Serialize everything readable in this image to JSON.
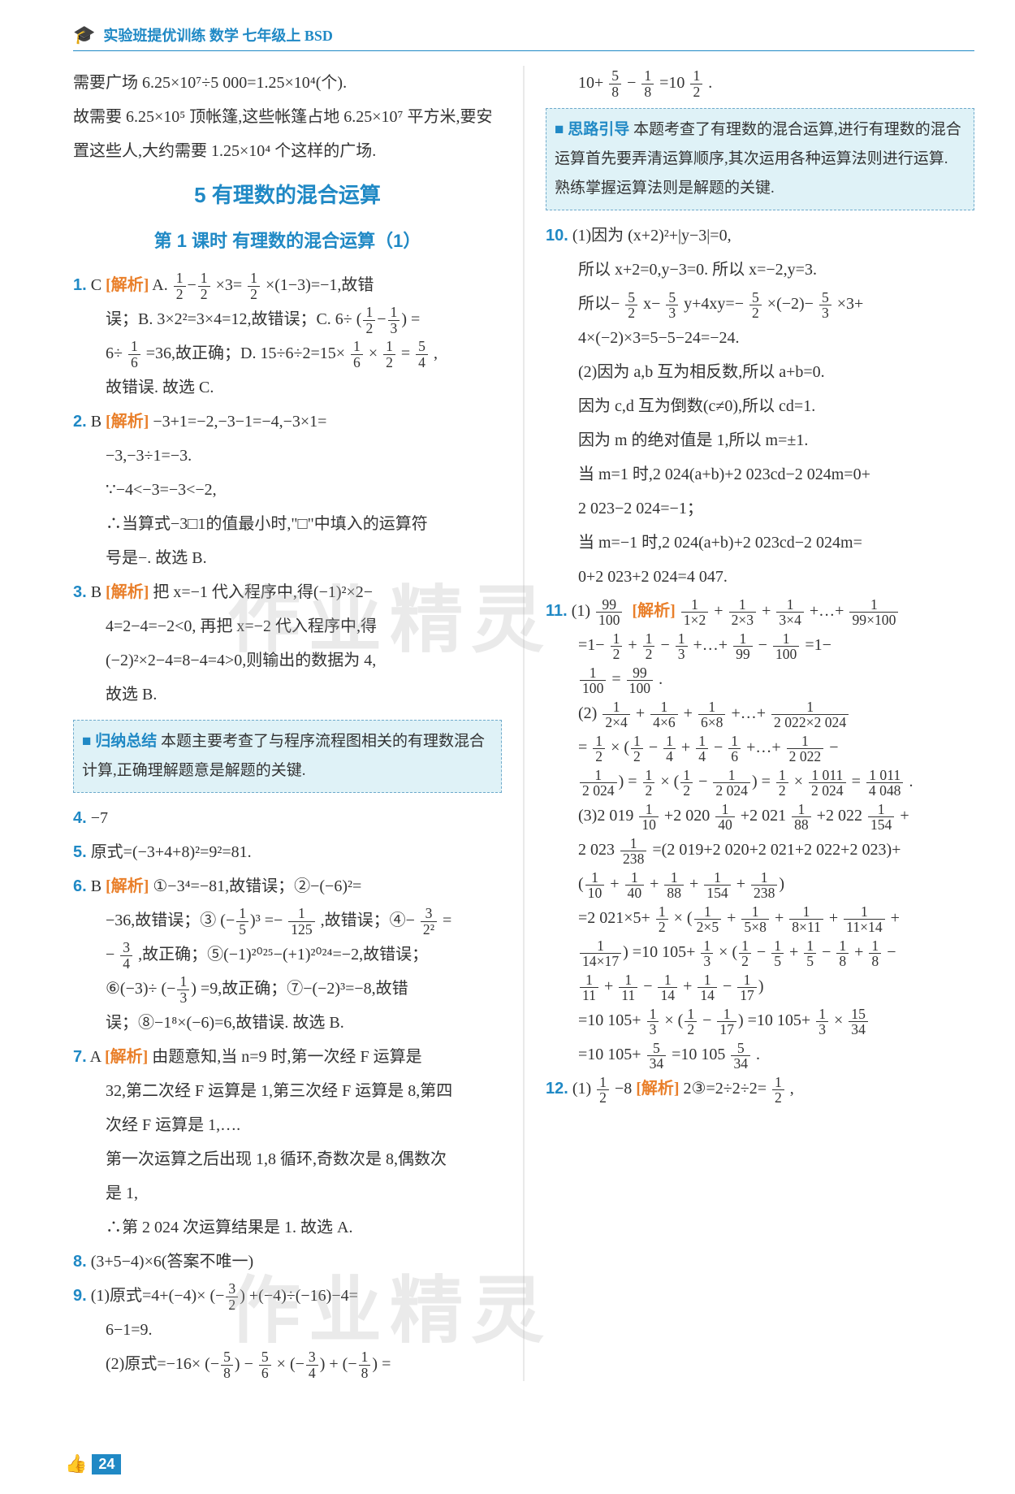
{
  "header": {
    "title": "实验班提优训练 数学 七年级上 BSD"
  },
  "page_number": "24",
  "section": {
    "title": "5  有理数的混合运算",
    "subtitle": "第 1 课时  有理数的混合运算（1）"
  },
  "watermark": "作业精灵",
  "col1": {
    "intro1": "需要广场 6.25×10⁷÷5 000=1.25×10⁴(个).",
    "intro2": "故需要 6.25×10⁵ 顶帐篷,这些帐篷占地 6.25×10⁷ 平方米,要安置这些人,大约需要 1.25×10⁴ 个这样的广场.",
    "q1_num": "1.",
    "q1_ans": "C",
    "q1_tag": "[解析]",
    "q1_l1a": "A. ",
    "q1_l1b": "×3=",
    "q1_l1c": "×(1−3)=−1,故错",
    "q1_l2a": "误；B. 3×2²=3×4=12,故错误；C. 6÷",
    "q1_l2b": "=",
    "q1_l3a": "6÷",
    "q1_l3b": "=36,故正确；D. 15÷6÷2=15×",
    "q1_l3c": "×",
    "q1_l3d": "=",
    "q1_l3e": ",",
    "q1_l4": "故错误. 故选 C.",
    "q2_num": "2.",
    "q2_ans": "B",
    "q2_tag": "[解析]",
    "q2_l1": "−3+1=−2,−3−1=−4,−3×1=",
    "q2_l2": "−3,−3÷1=−3.",
    "q2_l3": "∵−4<−3=−3<−2,",
    "q2_l4": "∴当算式−3□1的值最小时,\"□\"中填入的运算符",
    "q2_l5": "号是−. 故选 B.",
    "q3_num": "3.",
    "q3_ans": "B",
    "q3_tag": "[解析]",
    "q3_l1": "把 x=−1 代入程序中,得(−1)²×2−",
    "q3_l2": "4=2−4=−2<0, 再把 x=−2 代入程序中,得",
    "q3_l3": "(−2)²×2−4=8−4=4>0,则输出的数据为 4,",
    "q3_l4": "故选 B.",
    "box1_label": "■ 归纳总结",
    "box1_text": "本题主要考查了与程序流程图相关的有理数混合计算,正确理解题意是解题的关键.",
    "q4_num": "4.",
    "q4_ans": "−7",
    "q5_num": "5.",
    "q5_text": "原式=(−3+4+8)²=9²=81.",
    "q6_num": "6.",
    "q6_ans": "B",
    "q6_tag": "[解析]",
    "q6_l1": "①−3⁴=−81,故错误；②−(−6)²=",
    "q6_l2a": "−36,故错误；③",
    "q6_l2b": "=−",
    "q6_l2c": ",故错误；④−",
    "q6_l2d": "=",
    "q6_l3a": "−",
    "q6_l3b": ",故正确；⑤(−1)²⁰²⁵−(+1)²⁰²⁴=−2,故错误；",
    "q6_l4a": "⑥(−3)÷",
    "q6_l4b": "=9,故正确；⑦−(−2)³=−8,故错",
    "q6_l5": "误；⑧−1⁸×(−6)=6,故错误. 故选 B.",
    "q7_num": "7.",
    "q7_ans": "A",
    "q7_tag": "[解析]",
    "q7_l1": "由题意知,当 n=9 时,第一次经 F 运算是",
    "q7_l2": "32,第二次经 F 运算是 1,第三次经 F 运算是 8,第四",
    "q7_l3": "次经 F 运算是 1,….",
    "q7_l4": "第一次运算之后出现 1,8 循环,奇数次是 8,偶数次",
    "q7_l5": "是 1,",
    "q7_l6": "∴第 2 024 次运算结果是 1. 故选 A.",
    "q8_num": "8.",
    "q8_text": "(3+5−4)×6(答案不唯一)",
    "q9_num": "9.",
    "q9_l1a": "(1)原式=4+(−4)×",
    "q9_l1b": "+(−4)÷(−16)−4=",
    "q9_l2": "6−1=9.",
    "q9_l3a": "(2)原式=−16×",
    "q9_l3b": "−",
    "q9_l3c": "×",
    "q9_l3d": "+",
    "q9_l3e": "="
  },
  "col2": {
    "cont_a": "10+",
    "cont_b": "−",
    "cont_c": "=10",
    "cont_d": ".",
    "box2_label": "■ 思路引导",
    "box2_text": "本题考查了有理数的混合运算,进行有理数的混合运算首先要弄清运算顺序,其次运用各种运算法则进行运算. 熟练掌握运算法则是解题的关键.",
    "q10_num": "10.",
    "q10_l1": "(1)因为 (x+2)²+|y−3|=0,",
    "q10_l2": "所以 x+2=0,y−3=0. 所以 x=−2,y=3.",
    "q10_l3a": "所以−",
    "q10_l3b": "x−",
    "q10_l3c": "y+4xy=−",
    "q10_l3d": "×(−2)−",
    "q10_l3e": "×3+",
    "q10_l4": "4×(−2)×3=5−5−24=−24.",
    "q10_l5": "(2)因为 a,b 互为相反数,所以 a+b=0.",
    "q10_l6": "因为 c,d 互为倒数(c≠0),所以 cd=1.",
    "q10_l7": "因为 m 的绝对值是 1,所以 m=±1.",
    "q10_l8": "当 m=1 时,2 024(a+b)+2 023cd−2 024m=0+",
    "q10_l9": "2 023−2 024=−1；",
    "q10_l10": "当 m=−1 时,2 024(a+b)+2 023cd−2 024m=",
    "q10_l11": "0+2 023+2 024=4 047.",
    "q11_num": "11.",
    "q11_tag": "[解析]",
    "q11_1a": "(1)",
    "q11_1b": "+",
    "q11_1c": "+",
    "q11_1d": "+…+",
    "q11_2a": "=1−",
    "q11_2b": "+",
    "q11_2c": "−",
    "q11_2d": "+…+",
    "q11_2e": "−",
    "q11_2f": "=1−",
    "q11_3a": "=",
    "q11_3b": ".",
    "q11_p2_a": "(2)",
    "q11_p2_b": "+",
    "q11_p2_c": "+",
    "q11_p2_d": "+…+",
    "q11_p2_e": "=",
    "q11_p2_f": "×",
    "q11_p2_g": "−",
    "q11_p2_h": "+",
    "q11_p2_i": "−",
    "q11_p2_j": "+…+",
    "q11_p2_k": "−",
    "q11_p2_l": "=",
    "q11_p2_m": "×",
    "q11_p2_n": "−",
    "q11_p2_o": "=",
    "q11_p2_p": "×",
    "q11_p2_q": "=",
    "q11_p2_r": ".",
    "q11_p3_a": "(3)2 019",
    "q11_p3_b": "+2 020",
    "q11_p3_c": "+2 021",
    "q11_p3_d": "+2 022",
    "q11_p3_e": "+",
    "q11_p3_f": "2 023",
    "q11_p3_g": "=(2 019+2 020+2 021+2 022+2 023)+",
    "q11_p3_h": "+",
    "q11_p3_i": "+",
    "q11_p3_j": "+",
    "q11_p3_k": "+",
    "q11_p3_l": "=2 021×5+",
    "q11_p3_m": "×",
    "q11_p3_n": "+",
    "q11_p3_o": "+",
    "q11_p3_p": "+",
    "q11_p3_q": "=10 105+",
    "q11_p3_r": "×",
    "q11_p3_s": "−",
    "q11_p3_t": "+",
    "q11_p3_u": "−",
    "q11_p3_v": "+",
    "q11_p3_w": "−",
    "q11_p3_x": "+",
    "q11_p3_y": "−",
    "q11_p3_z": "+",
    "q11_p3_aa": "−",
    "q11_p3_bb": "=10 105+",
    "q11_p3_cc": "×",
    "q11_p3_dd": "−",
    "q11_p3_ee": "=10 105+",
    "q11_p3_ff": "×",
    "q11_p3_gg": "=10 105+",
    "q11_p3_hh": "=10 105",
    "q11_p3_ii": ".",
    "q12_num": "12.",
    "q12_a": "(1)",
    "q12_b": "  −8  ",
    "q12_tag": "[解析]",
    "q12_c": "2③=2÷2÷2=",
    "q12_d": ","
  },
  "fracs": {
    "half": {
      "n": "1",
      "d": "2"
    },
    "sixth": {
      "n": "1",
      "d": "6"
    },
    "fiveq": {
      "n": "5",
      "d": "4"
    },
    "third": {
      "n": "1",
      "d": "3"
    },
    "one125": {
      "n": "1",
      "d": "125"
    },
    "threeq": {
      "n": "3",
      "d": "4"
    },
    "threeh": {
      "n": "3",
      "d": "2"
    },
    "threetwo2": {
      "n": "3",
      "d": "2²"
    },
    "fiveh": {
      "n": "5",
      "d": "2"
    },
    "fivet": {
      "n": "5",
      "d": "3"
    },
    "fiveE": {
      "n": "5",
      "d": "8"
    },
    "oneE": {
      "n": "1",
      "d": "8"
    },
    "five6": {
      "n": "5",
      "d": "6"
    },
    "nfifth": {
      "n": "1",
      "d": "5"
    },
    "n99_100": {
      "n": "99",
      "d": "100"
    },
    "n1_1x2": {
      "n": "1",
      "d": "1×2"
    },
    "n1_2x3": {
      "n": "1",
      "d": "2×3"
    },
    "n1_3x4": {
      "n": "1",
      "d": "3×4"
    },
    "n1_99x100": {
      "n": "1",
      "d": "99×100"
    },
    "n1_99": {
      "n": "1",
      "d": "99"
    },
    "n1_100": {
      "n": "1",
      "d": "100"
    },
    "n1_2x4": {
      "n": "1",
      "d": "2×4"
    },
    "n1_4x6": {
      "n": "1",
      "d": "4×6"
    },
    "n1_6x8": {
      "n": "1",
      "d": "6×8"
    },
    "n1_2022x2024": {
      "n": "1",
      "d": "2 022×2 024"
    },
    "n1_4": {
      "n": "1",
      "d": "4"
    },
    "n1_6b": {
      "n": "1",
      "d": "6"
    },
    "n1_2022": {
      "n": "1",
      "d": "2 022"
    },
    "n1_2024": {
      "n": "1",
      "d": "2 024"
    },
    "n1011_2024": {
      "n": "1 011",
      "d": "2 024"
    },
    "n1011_4048": {
      "n": "1 011",
      "d": "4 048"
    },
    "n1_10": {
      "n": "1",
      "d": "10"
    },
    "n1_40": {
      "n": "1",
      "d": "40"
    },
    "n1_88": {
      "n": "1",
      "d": "88"
    },
    "n1_154": {
      "n": "1",
      "d": "154"
    },
    "n1_238": {
      "n": "1",
      "d": "238"
    },
    "n1_2x5": {
      "n": "1",
      "d": "2×5"
    },
    "n1_5x8": {
      "n": "1",
      "d": "5×8"
    },
    "n1_8x11": {
      "n": "1",
      "d": "8×11"
    },
    "n1_11x14": {
      "n": "1",
      "d": "11×14"
    },
    "n1_14x17": {
      "n": "1",
      "d": "14×17"
    },
    "n1_5": {
      "n": "1",
      "d": "5"
    },
    "n1_8": {
      "n": "1",
      "d": "8"
    },
    "n1_11": {
      "n": "1",
      "d": "11"
    },
    "n1_14": {
      "n": "1",
      "d": "14"
    },
    "n1_17": {
      "n": "1",
      "d": "17"
    },
    "n15_34": {
      "n": "15",
      "d": "34"
    },
    "n5_34": {
      "n": "5",
      "d": "34"
    }
  }
}
